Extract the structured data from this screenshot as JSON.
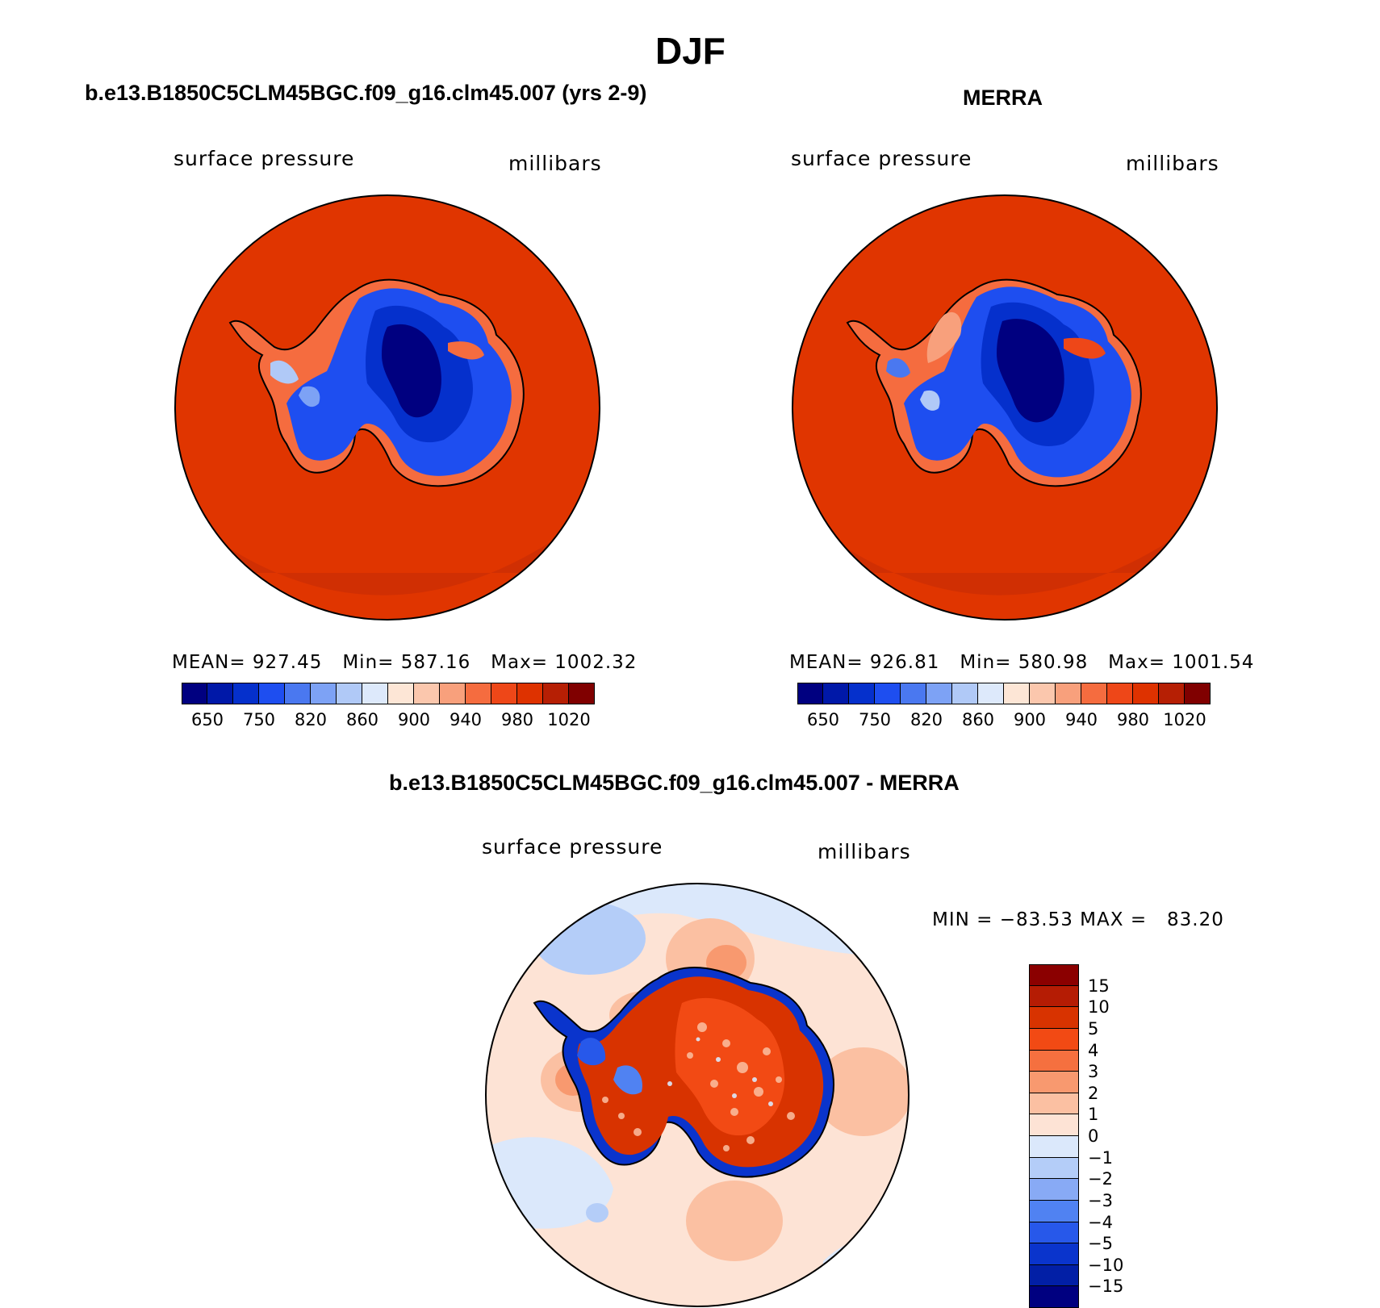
{
  "page_title": "DJF",
  "colors": {
    "ocean_abs": "#e03500",
    "ocean_shadow": "#c02a05",
    "diff_base": "#fde3d5"
  },
  "panels": [
    {
      "title": "b.e13.B1850C5CLM45BGC.f09_g16.clm45.007 (yrs 2-9)",
      "left_label": "surface pressure",
      "right_label": "millibars",
      "stats": {
        "mean_label": "MEAN=",
        "mean": "927.45",
        "min_label": "Min=",
        "min": "587.16",
        "max_label": "Max=",
        "max": "1002.32"
      }
    },
    {
      "title": "MERRA",
      "left_label": "surface pressure",
      "right_label": "millibars",
      "stats": {
        "mean_label": "MEAN=",
        "mean": "926.81",
        "min_label": "Min=",
        "min": "580.98",
        "max_label": "Max=",
        "max": "1001.54"
      }
    }
  ],
  "abs_colorbar": {
    "colors": [
      "#000080",
      "#0018a8",
      "#0530cc",
      "#1e4ef0",
      "#4a78f0",
      "#7da2f5",
      "#b0c9f7",
      "#dde9fb",
      "#fde6d6",
      "#fbc7ad",
      "#f8a07c",
      "#f56c3f",
      "#ee4718",
      "#de3200",
      "#b61f04",
      "#800000"
    ],
    "labels": [
      "650",
      "750",
      "820",
      "860",
      "900",
      "940",
      "980",
      "1020"
    ]
  },
  "diff_panel": {
    "title": "b.e13.B1850C5CLM45BGC.f09_g16.clm45.007 - MERRA",
    "left_label": "surface pressure",
    "right_label": "millibars",
    "minmax": {
      "min_label": "MIN =",
      "min": "−83.53",
      "max_label": "MAX =",
      "max": "83.20"
    }
  },
  "diff_colorbar": {
    "colors": [
      "#8b0000",
      "#b51c04",
      "#d83300",
      "#f24a14",
      "#f5703f",
      "#f8996f",
      "#fbc0a2",
      "#fde3d5",
      "#dbe8fb",
      "#b4cdf8",
      "#88aaf5",
      "#5082f2",
      "#2758ea",
      "#0a34cc",
      "#021fa6",
      "#000080"
    ],
    "labels": [
      "15",
      "10",
      "5",
      "4",
      "3",
      "2",
      "1",
      "0",
      "−1",
      "−2",
      "−3",
      "−4",
      "−5",
      "−10",
      "−15"
    ]
  }
}
